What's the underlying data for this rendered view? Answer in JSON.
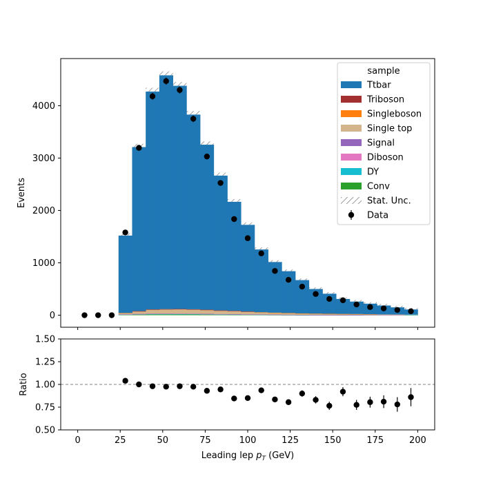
{
  "chart_data": [
    {
      "type": "bar",
      "stacked": true,
      "ylabel": "Events",
      "xlim": [
        -10,
        210
      ],
      "ylim": [
        -230,
        4900
      ],
      "x_ticks": [
        0,
        25,
        50,
        75,
        100,
        125,
        150,
        175,
        200
      ],
      "y_ticks": [
        0,
        1000,
        2000,
        3000,
        4000
      ],
      "bin_edges": [
        24,
        32,
        40,
        48,
        56,
        64,
        72,
        80,
        88,
        96,
        104,
        112,
        120,
        128,
        136,
        144,
        152,
        160,
        168,
        176,
        184,
        192,
        200
      ],
      "legend": {
        "title": "sample",
        "placement": "top-right",
        "entries": [
          "Ttbar",
          "Triboson",
          "Singleboson",
          "Single top",
          "Signal",
          "Diboson",
          "DY",
          "Conv",
          "Stat. Unc.",
          "Data"
        ]
      },
      "series": [
        {
          "name": "Conv",
          "color": "#2ca02c",
          "values": [
            8,
            12,
            15,
            15,
            14,
            13,
            12,
            10,
            9,
            8,
            7,
            5,
            4,
            3,
            3,
            2,
            2,
            2,
            2,
            1,
            1,
            1
          ]
        },
        {
          "name": "DY",
          "color": "#17becf",
          "values": [
            5,
            8,
            10,
            10,
            10,
            10,
            9,
            8,
            7,
            6,
            5,
            4,
            3,
            3,
            2,
            2,
            2,
            2,
            1,
            1,
            1,
            1
          ]
        },
        {
          "name": "Diboson",
          "color": "#e377c2",
          "values": [
            2,
            3,
            4,
            4,
            4,
            4,
            3,
            3,
            3,
            2,
            2,
            2,
            2,
            1,
            1,
            1,
            1,
            1,
            1,
            1,
            1,
            0
          ]
        },
        {
          "name": "Signal",
          "color": "#9467bd",
          "values": [
            1,
            2,
            2,
            2,
            2,
            2,
            2,
            2,
            1,
            1,
            1,
            1,
            1,
            1,
            1,
            1,
            1,
            1,
            0,
            0,
            0,
            0
          ]
        },
        {
          "name": "Single top",
          "color": "#d4b48a",
          "values": [
            25,
            50,
            75,
            80,
            85,
            80,
            75,
            65,
            60,
            50,
            40,
            35,
            30,
            25,
            22,
            20,
            17,
            15,
            13,
            11,
            10,
            8
          ]
        },
        {
          "name": "Singleboson",
          "color": "#ff7f0e",
          "values": [
            1,
            2,
            3,
            3,
            3,
            3,
            2,
            2,
            2,
            2,
            1,
            1,
            1,
            1,
            1,
            1,
            1,
            1,
            1,
            0,
            0,
            0
          ]
        },
        {
          "name": "Triboson",
          "color": "#a42f2f",
          "values": [
            0,
            1,
            1,
            2,
            1,
            1,
            1,
            1,
            1,
            1,
            0,
            0,
            0,
            0,
            0,
            0,
            0,
            0,
            0,
            0,
            0,
            0
          ]
        },
        {
          "name": "Ttbar",
          "color": "#1f77b4",
          "values": [
            1478,
            3132,
            4160,
            4464,
            4261,
            3717,
            3151,
            2574,
            2082,
            1655,
            1199,
            967,
            799,
            636,
            470,
            383,
            286,
            238,
            202,
            171,
            137,
            100
          ]
        }
      ],
      "total_values": [
        1520,
        3210,
        4270,
        4580,
        4380,
        3830,
        3255,
        2665,
        2165,
        1725,
        1255,
        1015,
        840,
        670,
        500,
        410,
        310,
        260,
        220,
        185,
        150,
        110
      ],
      "data_points": {
        "name": "Data",
        "x": [
          4,
          12,
          20,
          28,
          36,
          44,
          52,
          60,
          68,
          76,
          84,
          92,
          100,
          108,
          116,
          124,
          132,
          140,
          148,
          156,
          164,
          172,
          180,
          188,
          196
        ],
        "y": [
          0,
          0,
          0,
          1580,
          3195,
          4180,
          4470,
          4300,
          3750,
          3030,
          2525,
          1835,
          1470,
          1180,
          845,
          675,
          545,
          405,
          310,
          285,
          205,
          155,
          130,
          100,
          75
        ]
      }
    },
    {
      "type": "scatter",
      "xlabel": "Leading lep p_T (GeV)",
      "xlabel_main": "Leading lep ",
      "xlabel_sym": "p",
      "xlabel_sub": "T",
      "xlabel_unit": " (GeV)",
      "ylabel": "Ratio",
      "xlim": [
        -10,
        210
      ],
      "ylim": [
        0.5,
        1.5
      ],
      "x_ticks": [
        0,
        25,
        50,
        75,
        100,
        125,
        150,
        175,
        200
      ],
      "x_tick_labels": [
        "0",
        "25",
        "50",
        "75",
        "100",
        "125",
        "150",
        "175",
        "200"
      ],
      "y_ticks": [
        0.5,
        0.75,
        1.0,
        1.25,
        1.5
      ],
      "y_tick_labels": [
        "0.50",
        "0.75",
        "1.00",
        "1.25",
        "1.50"
      ],
      "reference_line": 1.0,
      "x": [
        28,
        36,
        44,
        52,
        60,
        68,
        76,
        84,
        92,
        100,
        108,
        116,
        124,
        132,
        140,
        148,
        156,
        164,
        172,
        180,
        188,
        196
      ],
      "y": [
        1.04,
        1.0,
        0.98,
        0.975,
        0.98,
        0.975,
        0.93,
        0.945,
        0.845,
        0.85,
        0.935,
        0.835,
        0.805,
        0.9,
        0.83,
        0.765,
        0.92,
        0.775,
        0.805,
        0.81,
        0.78,
        0.86
      ],
      "yerr": [
        0.018,
        0.014,
        0.012,
        0.012,
        0.012,
        0.013,
        0.014,
        0.016,
        0.018,
        0.02,
        0.024,
        0.027,
        0.03,
        0.035,
        0.04,
        0.045,
        0.05,
        0.055,
        0.06,
        0.07,
        0.08,
        0.1
      ]
    }
  ]
}
